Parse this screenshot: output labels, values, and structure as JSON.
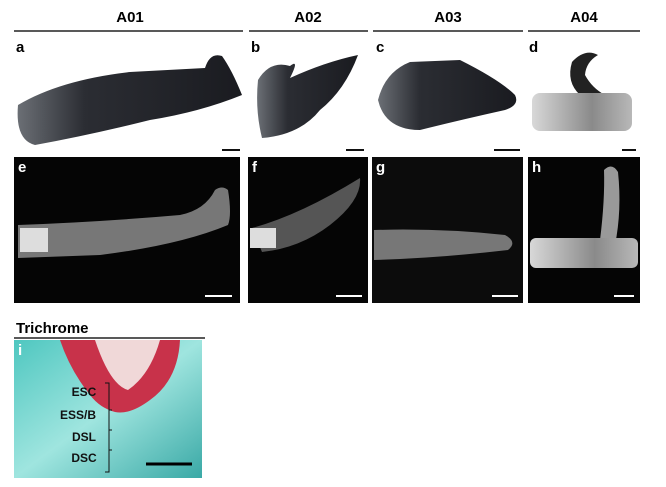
{
  "columns": [
    {
      "header": "A01",
      "photo_label": "a",
      "xray_label": "e"
    },
    {
      "header": "A02",
      "photo_label": "b",
      "xray_label": "f"
    },
    {
      "header": "A03",
      "photo_label": "c",
      "xray_label": "g"
    },
    {
      "header": "A04",
      "photo_label": "d",
      "xray_label": "h"
    }
  ],
  "trichrome": {
    "title": "Trichrome",
    "panel_label": "i",
    "layers": [
      "ESC",
      "ESS/B",
      "DSL",
      "DSC"
    ]
  }
}
